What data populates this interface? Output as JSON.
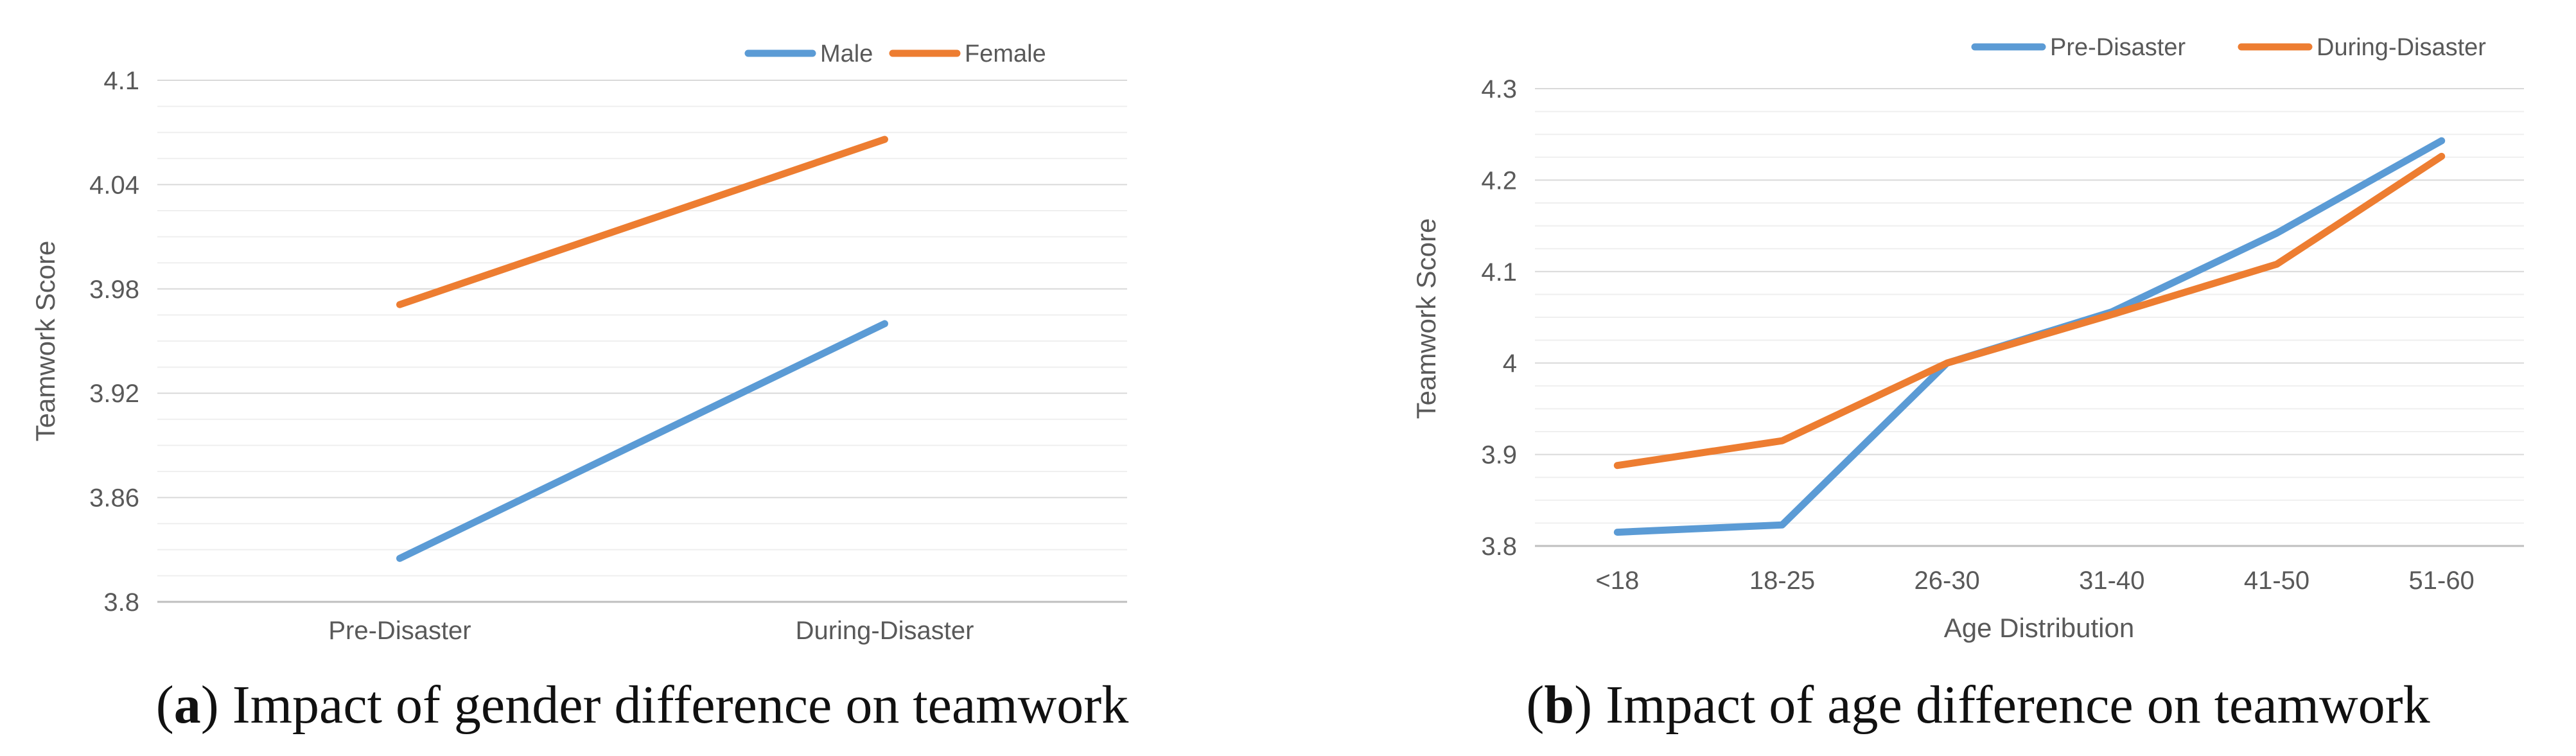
{
  "colors": {
    "series_blue": "#5B9BD5",
    "series_orange": "#ED7D31",
    "gridline": "#D9D9D9",
    "minor_gridline": "#EFEFEF",
    "axis": "#BFBFBF"
  },
  "chart_data": [
    {
      "type": "line",
      "title": "",
      "caption": {
        "open": "(",
        "letter": "a",
        "close": ")",
        "text": " Impact of gender difference on teamwork"
      },
      "xlabel": "",
      "ylabel": "Teamwork Score",
      "categories": [
        "Pre-Disaster",
        "During-Disaster"
      ],
      "ylim": [
        3.8,
        4.1
      ],
      "yticks": [
        3.8,
        3.86,
        3.92,
        3.98,
        4.04,
        4.1
      ],
      "ytick_labels": [
        "3.8",
        "3.86",
        "3.92",
        "3.98",
        "4.04",
        "4.1"
      ],
      "minor_step": 0.015,
      "legend_position": "top-right",
      "series": [
        {
          "name": "Male",
          "color": "#5B9BD5",
          "values": [
            3.825,
            3.96
          ]
        },
        {
          "name": "Female",
          "color": "#ED7D31",
          "values": [
            3.971,
            4.066
          ]
        }
      ]
    },
    {
      "type": "line",
      "title": "",
      "caption": {
        "open": "(",
        "letter": "b",
        "close": ")",
        "text": " Impact of age difference on teamwork"
      },
      "xlabel": "Age Distribution",
      "ylabel": "Teamwork Score",
      "categories": [
        "<18",
        "18-25",
        "26-30",
        "31-40",
        "41-50",
        "51-60"
      ],
      "ylim": [
        3.8,
        4.3
      ],
      "yticks": [
        3.8,
        3.9,
        4.0,
        4.1,
        4.2,
        4.3
      ],
      "ytick_labels": [
        "3.8",
        "3.9",
        "4",
        "4.1",
        "4.2",
        "4.3"
      ],
      "minor_step": 0.025,
      "legend_position": "top-right",
      "series": [
        {
          "name": "Pre-Disaster",
          "color": "#5B9BD5",
          "values": [
            3.815,
            3.823,
            4.0,
            4.056,
            4.142,
            4.243
          ]
        },
        {
          "name": "During-Disaster",
          "color": "#ED7D31",
          "values": [
            3.888,
            3.915,
            4.0,
            4.053,
            4.108,
            4.226
          ]
        }
      ]
    }
  ]
}
